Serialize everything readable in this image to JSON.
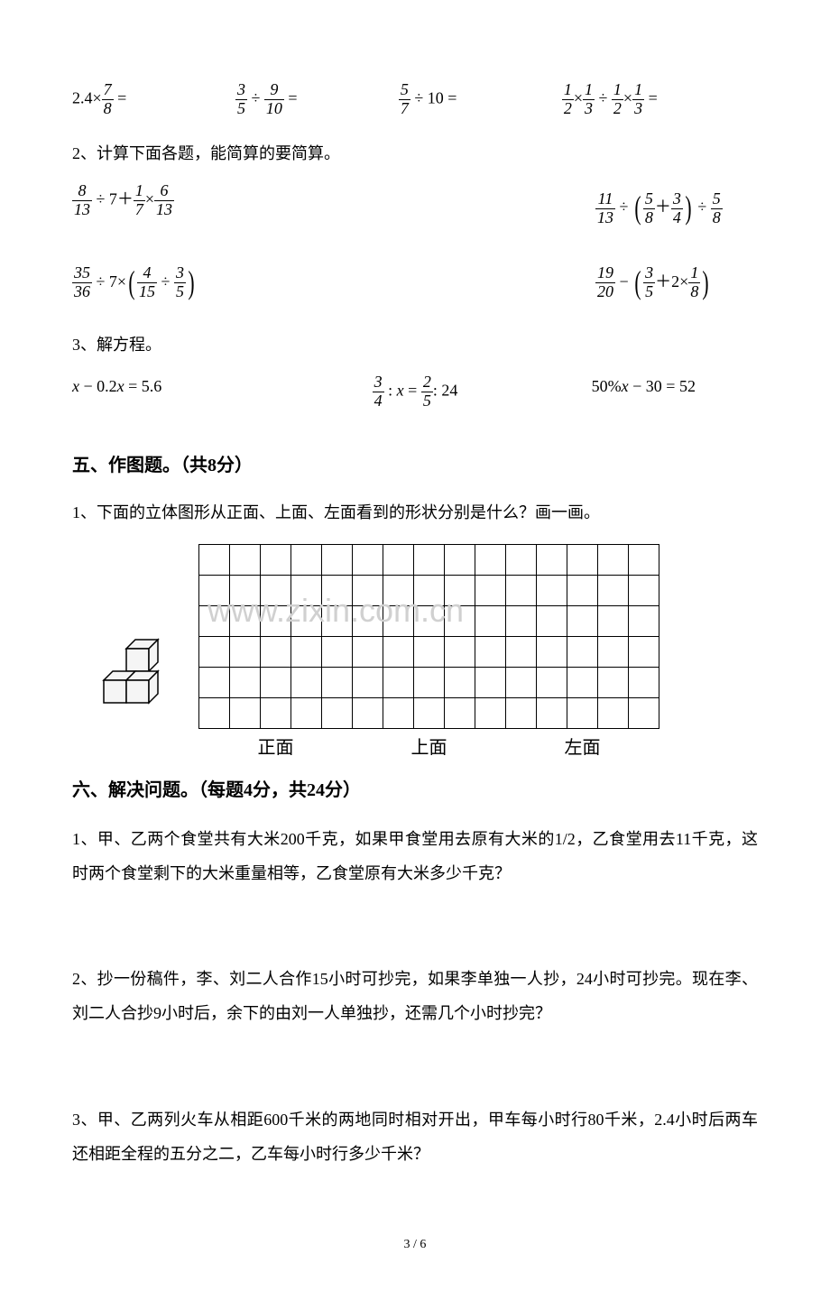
{
  "row1": {
    "expr1_a": "2.4",
    "expr1_n": "7",
    "expr1_d": "8",
    "expr2_n1": "3",
    "expr2_d1": "5",
    "expr2_n2": "9",
    "expr2_d2": "10",
    "expr3_n": "5",
    "expr3_d": "7",
    "expr3_b": "10",
    "expr4_n1": "1",
    "expr4_d1": "2",
    "expr4_n2": "1",
    "expr4_d2": "3",
    "expr4_n3": "1",
    "expr4_d3": "2",
    "expr4_n4": "1",
    "expr4_d4": "3"
  },
  "q2_text": "2、计算下面各题，能简算的要简算。",
  "row2": {
    "l1_n1": "8",
    "l1_d1": "13",
    "l1_a": "7",
    "l1_n2": "1",
    "l1_d2": "7",
    "l1_n3": "6",
    "l1_d3": "13",
    "r1_n1": "11",
    "r1_d1": "13",
    "r1_n2": "5",
    "r1_d2": "8",
    "r1_n3": "3",
    "r1_d3": "4",
    "r1_n4": "5",
    "r1_d4": "8",
    "l2_n1": "35",
    "l2_d1": "36",
    "l2_a": "7",
    "l2_n2": "4",
    "l2_d2": "15",
    "l2_n3": "3",
    "l2_d3": "5",
    "r2_n1": "19",
    "r2_d1": "20",
    "r2_n2": "3",
    "r2_d2": "5",
    "r2_a": "2",
    "r2_n3": "1",
    "r2_d3": "8"
  },
  "q3_text": "3、解方程。",
  "eq": {
    "e1": "x − 0.2x = 5.6",
    "e2_n1": "3",
    "e2_d1": "4",
    "e2_mid": ": x =",
    "e2_n2": "2",
    "e2_d2": "5",
    "e2_end": ": 24",
    "e3": "50%x − 30 = 52"
  },
  "section5_title": "五、作图题。（共8分）",
  "s5_q1": "1、下面的立体图形从正面、上面、左面看到的形状分别是什么？画一画。",
  "grid": {
    "rows": 6,
    "cols": 15,
    "cell_size": 34,
    "border_color": "#000000",
    "labels": [
      "正面",
      "上面",
      "左面"
    ]
  },
  "watermark_text": "www.zixin.com.cn",
  "section6_title": "六、解决问题。（每题4分，共24分）",
  "problems": {
    "p1": "1、甲、乙两个食堂共有大米200千克，如果甲食堂用去原有大米的1/2，乙食堂用去11千克，这时两个食堂剩下的大米重量相等，乙食堂原有大米多少千克？",
    "p2": "2、抄一份稿件，李、刘二人合作15小时可抄完，如果李单独一人抄，24小时可抄完。现在李、刘二人合抄9小时后，余下的由刘一人单独抄，还需几个小时抄完？",
    "p3": "3、甲、乙两列火车从相距600千米的两地同时相对开出，甲车每小时行80千米，2.4小时后两车还相距全程的五分之二，乙车每小时行多少千米？"
  },
  "page_num": "3 / 6",
  "colors": {
    "text": "#000000",
    "background": "#ffffff",
    "watermark": "#d0d0d0"
  }
}
